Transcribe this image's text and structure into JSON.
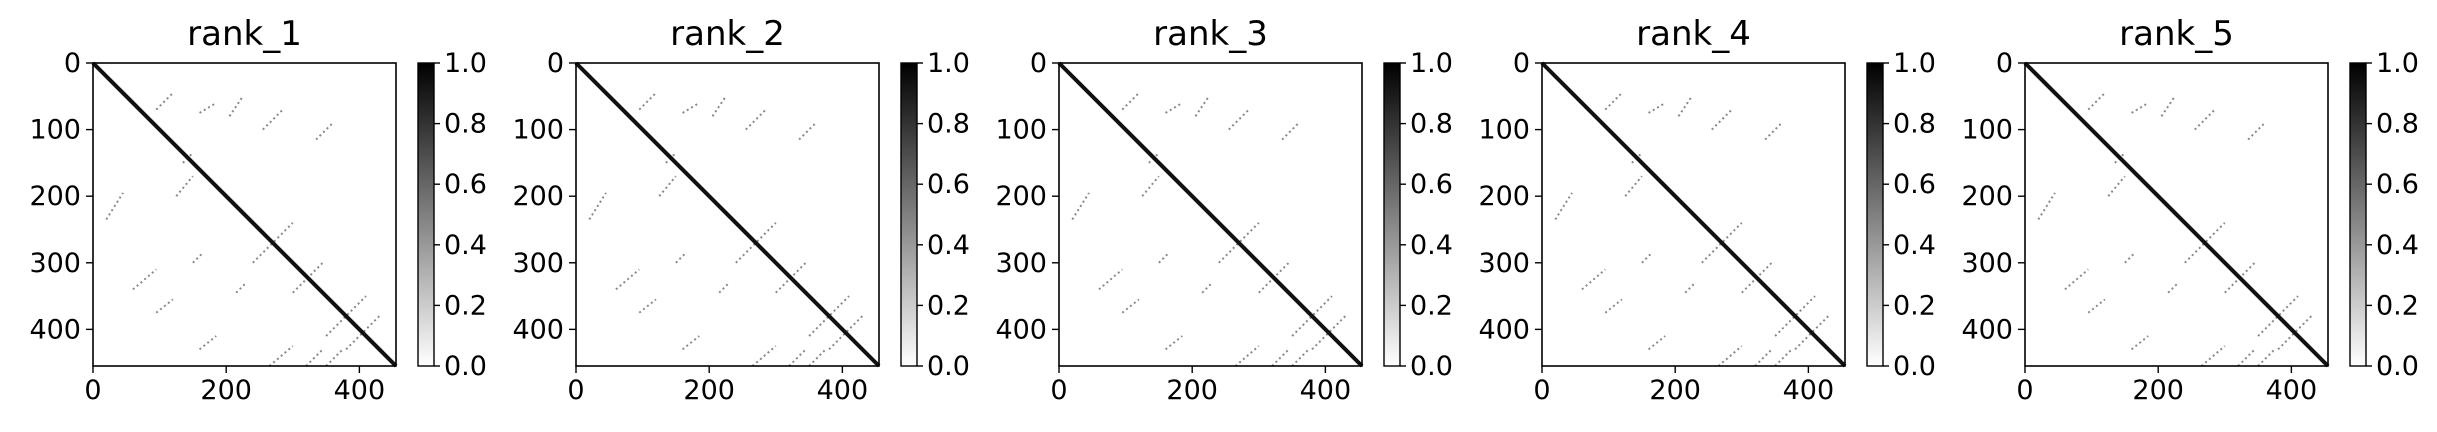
{
  "chart_data": [
    {
      "type": "heatmap",
      "title": "rank_1",
      "xlim": [
        0,
        455
      ],
      "ylim": [
        455,
        0
      ],
      "xticks": [
        "0",
        "200",
        "400"
      ],
      "yticks": [
        "0",
        "100",
        "200",
        "300",
        "400"
      ],
      "colorbar": {
        "range": [
          0.0,
          1.0
        ],
        "ticks": [
          "0.0",
          "0.2",
          "0.4",
          "0.6",
          "0.8",
          "1.0"
        ],
        "colormap": "white-to-black"
      },
      "diagonal": [
        [
          0,
          0
        ],
        [
          455,
          455
        ]
      ],
      "contact_segments": [
        [
          [
            135,
            150
          ],
          [
            150,
            135
          ]
        ],
        [
          [
            125,
            200
          ],
          [
            150,
            170
          ]
        ],
        [
          [
            20,
            235
          ],
          [
            45,
            195
          ]
        ],
        [
          [
            95,
            70
          ],
          [
            120,
            45
          ]
        ],
        [
          [
            160,
            75
          ],
          [
            185,
            60
          ]
        ],
        [
          [
            205,
            80
          ],
          [
            225,
            50
          ]
        ],
        [
          [
            255,
            100
          ],
          [
            285,
            70
          ]
        ],
        [
          [
            335,
            115
          ],
          [
            360,
            90
          ]
        ],
        [
          [
            240,
            300
          ],
          [
            300,
            240
          ]
        ],
        [
          [
            300,
            345
          ],
          [
            345,
            300
          ]
        ],
        [
          [
            350,
            410
          ],
          [
            410,
            350
          ]
        ],
        [
          [
            380,
            430
          ],
          [
            430,
            380
          ]
        ],
        [
          [
            265,
            455
          ],
          [
            300,
            425
          ]
        ],
        [
          [
            320,
            455
          ],
          [
            345,
            430
          ]
        ],
        [
          [
            350,
            455
          ],
          [
            375,
            430
          ]
        ],
        [
          [
            160,
            430
          ],
          [
            185,
            410
          ]
        ],
        [
          [
            95,
            375
          ],
          [
            120,
            355
          ]
        ],
        [
          [
            60,
            340
          ],
          [
            95,
            310
          ]
        ],
        [
          [
            150,
            300
          ],
          [
            165,
            285
          ]
        ],
        [
          [
            215,
            345
          ],
          [
            230,
            330
          ]
        ]
      ]
    },
    {
      "type": "heatmap",
      "title": "rank_2",
      "xlim": [
        0,
        455
      ],
      "ylim": [
        455,
        0
      ],
      "xticks": [
        "0",
        "200",
        "400"
      ],
      "yticks": [
        "0",
        "100",
        "200",
        "300",
        "400"
      ],
      "colorbar": {
        "range": [
          0.0,
          1.0
        ],
        "ticks": [
          "0.0",
          "0.2",
          "0.4",
          "0.6",
          "0.8",
          "1.0"
        ],
        "colormap": "white-to-black"
      },
      "diagonal": [
        [
          0,
          0
        ],
        [
          455,
          455
        ]
      ],
      "contact_segments": [
        [
          [
            135,
            150
          ],
          [
            150,
            135
          ]
        ],
        [
          [
            125,
            200
          ],
          [
            150,
            170
          ]
        ],
        [
          [
            20,
            235
          ],
          [
            45,
            195
          ]
        ],
        [
          [
            95,
            70
          ],
          [
            120,
            45
          ]
        ],
        [
          [
            160,
            75
          ],
          [
            185,
            60
          ]
        ],
        [
          [
            205,
            80
          ],
          [
            225,
            50
          ]
        ],
        [
          [
            255,
            100
          ],
          [
            285,
            70
          ]
        ],
        [
          [
            335,
            115
          ],
          [
            360,
            90
          ]
        ],
        [
          [
            240,
            300
          ],
          [
            300,
            240
          ]
        ],
        [
          [
            300,
            345
          ],
          [
            345,
            300
          ]
        ],
        [
          [
            350,
            410
          ],
          [
            410,
            350
          ]
        ],
        [
          [
            380,
            430
          ],
          [
            430,
            380
          ]
        ],
        [
          [
            265,
            455
          ],
          [
            300,
            425
          ]
        ],
        [
          [
            320,
            455
          ],
          [
            345,
            430
          ]
        ],
        [
          [
            350,
            455
          ],
          [
            375,
            430
          ]
        ],
        [
          [
            160,
            430
          ],
          [
            185,
            410
          ]
        ],
        [
          [
            95,
            375
          ],
          [
            120,
            355
          ]
        ],
        [
          [
            60,
            340
          ],
          [
            95,
            310
          ]
        ],
        [
          [
            150,
            300
          ],
          [
            165,
            285
          ]
        ],
        [
          [
            215,
            345
          ],
          [
            230,
            330
          ]
        ]
      ]
    },
    {
      "type": "heatmap",
      "title": "rank_3",
      "xlim": [
        0,
        455
      ],
      "ylim": [
        455,
        0
      ],
      "xticks": [
        "0",
        "200",
        "400"
      ],
      "yticks": [
        "0",
        "100",
        "200",
        "300",
        "400"
      ],
      "colorbar": {
        "range": [
          0.0,
          1.0
        ],
        "ticks": [
          "0.0",
          "0.2",
          "0.4",
          "0.6",
          "0.8",
          "1.0"
        ],
        "colormap": "white-to-black"
      },
      "diagonal": [
        [
          0,
          0
        ],
        [
          455,
          455
        ]
      ],
      "contact_segments": [
        [
          [
            135,
            150
          ],
          [
            150,
            135
          ]
        ],
        [
          [
            125,
            200
          ],
          [
            150,
            170
          ]
        ],
        [
          [
            20,
            235
          ],
          [
            45,
            195
          ]
        ],
        [
          [
            95,
            70
          ],
          [
            120,
            45
          ]
        ],
        [
          [
            160,
            75
          ],
          [
            185,
            60
          ]
        ],
        [
          [
            205,
            80
          ],
          [
            225,
            50
          ]
        ],
        [
          [
            255,
            100
          ],
          [
            285,
            70
          ]
        ],
        [
          [
            335,
            115
          ],
          [
            360,
            90
          ]
        ],
        [
          [
            240,
            300
          ],
          [
            300,
            240
          ]
        ],
        [
          [
            300,
            345
          ],
          [
            345,
            300
          ]
        ],
        [
          [
            350,
            410
          ],
          [
            410,
            350
          ]
        ],
        [
          [
            380,
            430
          ],
          [
            430,
            380
          ]
        ],
        [
          [
            265,
            455
          ],
          [
            300,
            425
          ]
        ],
        [
          [
            320,
            455
          ],
          [
            345,
            430
          ]
        ],
        [
          [
            350,
            455
          ],
          [
            375,
            430
          ]
        ],
        [
          [
            160,
            430
          ],
          [
            185,
            410
          ]
        ],
        [
          [
            95,
            375
          ],
          [
            120,
            355
          ]
        ],
        [
          [
            60,
            340
          ],
          [
            95,
            310
          ]
        ],
        [
          [
            150,
            300
          ],
          [
            165,
            285
          ]
        ],
        [
          [
            215,
            345
          ],
          [
            230,
            330
          ]
        ]
      ]
    },
    {
      "type": "heatmap",
      "title": "rank_4",
      "xlim": [
        0,
        455
      ],
      "ylim": [
        455,
        0
      ],
      "xticks": [
        "0",
        "200",
        "400"
      ],
      "yticks": [
        "0",
        "100",
        "200",
        "300",
        "400"
      ],
      "colorbar": {
        "range": [
          0.0,
          1.0
        ],
        "ticks": [
          "0.0",
          "0.2",
          "0.4",
          "0.6",
          "0.8",
          "1.0"
        ],
        "colormap": "white-to-black"
      },
      "diagonal": [
        [
          0,
          0
        ],
        [
          455,
          455
        ]
      ],
      "contact_segments": [
        [
          [
            135,
            150
          ],
          [
            150,
            135
          ]
        ],
        [
          [
            125,
            200
          ],
          [
            150,
            170
          ]
        ],
        [
          [
            20,
            235
          ],
          [
            45,
            195
          ]
        ],
        [
          [
            95,
            70
          ],
          [
            120,
            45
          ]
        ],
        [
          [
            160,
            75
          ],
          [
            185,
            60
          ]
        ],
        [
          [
            205,
            80
          ],
          [
            225,
            50
          ]
        ],
        [
          [
            255,
            100
          ],
          [
            285,
            70
          ]
        ],
        [
          [
            335,
            115
          ],
          [
            360,
            90
          ]
        ],
        [
          [
            240,
            300
          ],
          [
            300,
            240
          ]
        ],
        [
          [
            300,
            345
          ],
          [
            345,
            300
          ]
        ],
        [
          [
            350,
            410
          ],
          [
            410,
            350
          ]
        ],
        [
          [
            380,
            430
          ],
          [
            430,
            380
          ]
        ],
        [
          [
            265,
            455
          ],
          [
            300,
            425
          ]
        ],
        [
          [
            320,
            455
          ],
          [
            345,
            430
          ]
        ],
        [
          [
            350,
            455
          ],
          [
            375,
            430
          ]
        ],
        [
          [
            160,
            430
          ],
          [
            185,
            410
          ]
        ],
        [
          [
            95,
            375
          ],
          [
            120,
            355
          ]
        ],
        [
          [
            60,
            340
          ],
          [
            95,
            310
          ]
        ],
        [
          [
            150,
            300
          ],
          [
            165,
            285
          ]
        ],
        [
          [
            215,
            345
          ],
          [
            230,
            330
          ]
        ]
      ]
    },
    {
      "type": "heatmap",
      "title": "rank_5",
      "xlim": [
        0,
        455
      ],
      "ylim": [
        455,
        0
      ],
      "xticks": [
        "0",
        "200",
        "400"
      ],
      "yticks": [
        "0",
        "100",
        "200",
        "300",
        "400"
      ],
      "colorbar": {
        "range": [
          0.0,
          1.0
        ],
        "ticks": [
          "0.0",
          "0.2",
          "0.4",
          "0.6",
          "0.8",
          "1.0"
        ],
        "colormap": "white-to-black"
      },
      "diagonal": [
        [
          0,
          0
        ],
        [
          455,
          455
        ]
      ],
      "contact_segments": [
        [
          [
            135,
            150
          ],
          [
            150,
            135
          ]
        ],
        [
          [
            125,
            200
          ],
          [
            150,
            170
          ]
        ],
        [
          [
            20,
            235
          ],
          [
            45,
            195
          ]
        ],
        [
          [
            95,
            70
          ],
          [
            120,
            45
          ]
        ],
        [
          [
            160,
            75
          ],
          [
            185,
            60
          ]
        ],
        [
          [
            205,
            80
          ],
          [
            225,
            50
          ]
        ],
        [
          [
            255,
            100
          ],
          [
            285,
            70
          ]
        ],
        [
          [
            335,
            115
          ],
          [
            360,
            90
          ]
        ],
        [
          [
            240,
            300
          ],
          [
            300,
            240
          ]
        ],
        [
          [
            300,
            345
          ],
          [
            345,
            300
          ]
        ],
        [
          [
            350,
            410
          ],
          [
            410,
            350
          ]
        ],
        [
          [
            380,
            430
          ],
          [
            430,
            380
          ]
        ],
        [
          [
            265,
            455
          ],
          [
            300,
            425
          ]
        ],
        [
          [
            320,
            455
          ],
          [
            345,
            430
          ]
        ],
        [
          [
            350,
            455
          ],
          [
            375,
            430
          ]
        ],
        [
          [
            160,
            430
          ],
          [
            185,
            410
          ]
        ],
        [
          [
            95,
            375
          ],
          [
            120,
            355
          ]
        ],
        [
          [
            60,
            340
          ],
          [
            95,
            310
          ]
        ],
        [
          [
            150,
            300
          ],
          [
            165,
            285
          ]
        ],
        [
          [
            215,
            345
          ],
          [
            230,
            330
          ]
        ]
      ]
    }
  ]
}
